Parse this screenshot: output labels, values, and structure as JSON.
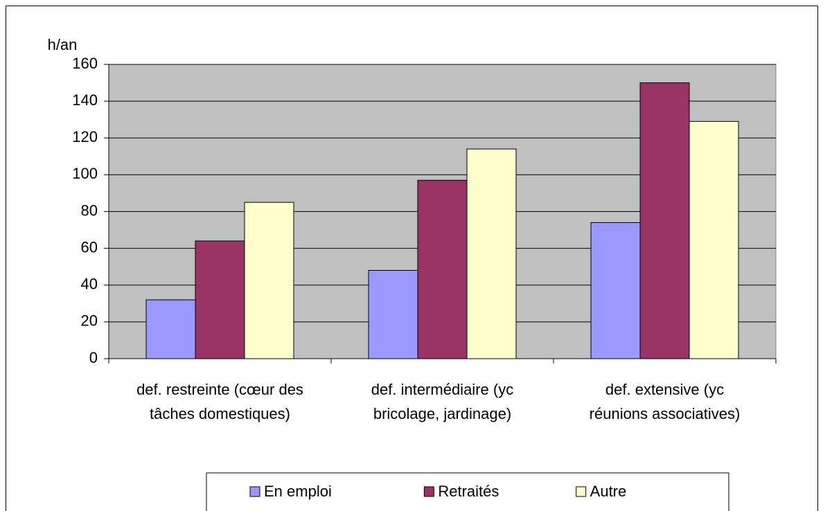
{
  "chart_data": {
    "type": "bar",
    "y_label": "h/an",
    "categories": [
      "def. restreinte (cœur des tâches domestiques)",
      "def. intermédiaire (yc bricolage, jardinage)",
      "def. extensive (yc réunions associatives)"
    ],
    "series": [
      {
        "name": "En emploi",
        "color": "#9999ff",
        "values": [
          32,
          48,
          74
        ]
      },
      {
        "name": "Retraités",
        "color": "#993366",
        "values": [
          64,
          97,
          150
        ]
      },
      {
        "name": "Autre",
        "color": "#ffffcc",
        "values": [
          85,
          114,
          129
        ]
      }
    ],
    "ylim": [
      0,
      160
    ],
    "yticks": [
      0,
      20,
      40,
      60,
      80,
      100,
      120,
      140,
      160
    ],
    "grid": true,
    "plot_background": "#c0c0c0",
    "legend": "bottom"
  }
}
